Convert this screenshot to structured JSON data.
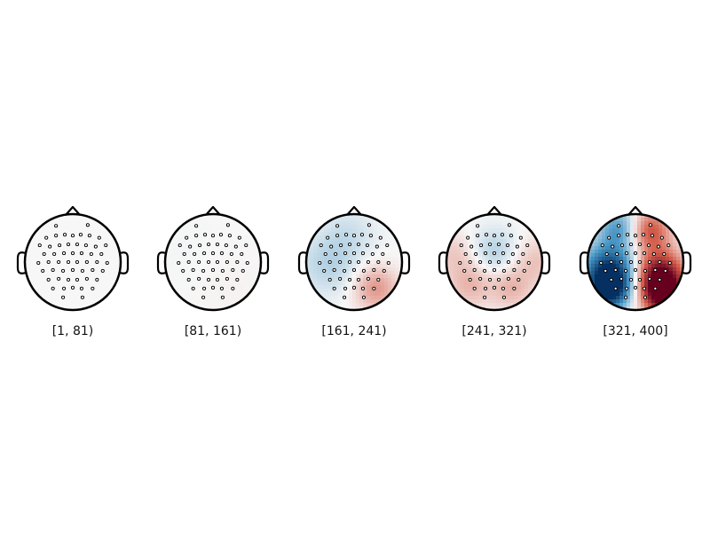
{
  "figure": {
    "panels": [
      {
        "label": "[1, 81)",
        "intensity": 0.04,
        "blobs": []
      },
      {
        "label": "[81, 161)",
        "intensity": 0.08,
        "blobs": [
          {
            "u": 0.25,
            "v": 0.55,
            "s": 0.6,
            "a": 0.25
          },
          {
            "u": -0.5,
            "v": 0.0,
            "s": 0.6,
            "a": -0.15
          }
        ]
      },
      {
        "label": "[161, 241)",
        "intensity": 0.35,
        "blobs": [
          {
            "u": 0.45,
            "v": 0.55,
            "s": 0.32,
            "a": 0.9
          },
          {
            "u": -0.55,
            "v": 0.05,
            "s": 0.45,
            "a": -0.5
          },
          {
            "u": -0.1,
            "v": -0.6,
            "s": 0.4,
            "a": -0.3
          }
        ]
      },
      {
        "label": "[241, 321)",
        "intensity": 0.35,
        "blobs": [
          {
            "u": -0.5,
            "v": 0.45,
            "s": 0.35,
            "a": 0.65
          },
          {
            "u": 0.35,
            "v": 0.55,
            "s": 0.3,
            "a": 0.6
          },
          {
            "u": 0.0,
            "v": -0.2,
            "s": 0.35,
            "a": -0.55
          },
          {
            "u": 0.85,
            "v": 0.0,
            "s": 0.35,
            "a": 0.5
          },
          {
            "u": -0.85,
            "v": -0.2,
            "s": 0.3,
            "a": 0.4
          }
        ]
      },
      {
        "label": "[321, 400]",
        "intensity": 1.0,
        "blobs": [
          {
            "u": -0.55,
            "v": 0.2,
            "s": 0.38,
            "a": -0.95
          },
          {
            "u": -0.55,
            "v": 0.6,
            "s": 0.28,
            "a": -0.8
          },
          {
            "u": 0.5,
            "v": 0.25,
            "s": 0.35,
            "a": 0.9
          },
          {
            "u": 0.6,
            "v": 0.7,
            "s": 0.3,
            "a": 1.0
          },
          {
            "u": 0.3,
            "v": -0.65,
            "s": 0.3,
            "a": 0.55
          },
          {
            "u": -0.35,
            "v": -0.7,
            "s": 0.3,
            "a": -0.45
          }
        ]
      }
    ]
  },
  "colormap": {
    "negative": "#053061",
    "mid": "#f7f7f7",
    "positive": "#67001f"
  }
}
